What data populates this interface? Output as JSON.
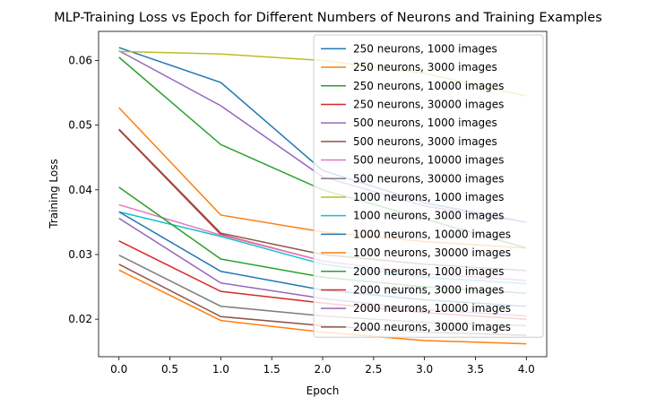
{
  "chart_data": {
    "type": "line",
    "title": "MLP-Training Loss vs Epoch for Different Numbers of Neurons and Training Examples",
    "xlabel": "Epoch",
    "ylabel": "Training Loss",
    "xlim": [
      -0.2,
      4.2
    ],
    "ylim": [
      0.0142,
      0.0645
    ],
    "xticks": [
      0.0,
      0.5,
      1.0,
      1.5,
      2.0,
      2.5,
      3.0,
      3.5,
      4.0
    ],
    "xtick_labels": [
      "0.0",
      "0.5",
      "1.0",
      "1.5",
      "2.0",
      "2.5",
      "3.0",
      "3.5",
      "4.0"
    ],
    "yticks": [
      0.02,
      0.03,
      0.04,
      0.05,
      0.06
    ],
    "ytick_labels": [
      "0.02",
      "0.03",
      "0.04",
      "0.05",
      "0.06"
    ],
    "grid": false,
    "legend_position": "upper right",
    "x": [
      0,
      1,
      2,
      3,
      4
    ],
    "series": [
      {
        "name": "250 neurons, 1000 images",
        "color": "#1f77b4",
        "values": [
          0.062,
          0.0566,
          0.043,
          0.038,
          0.035
        ]
      },
      {
        "name": "250 neurons, 3000 images",
        "color": "#ff7f0e",
        "values": [
          0.0527,
          0.0361,
          0.0335,
          0.032,
          0.031
        ]
      },
      {
        "name": "250 neurons, 10000 images",
        "color": "#2ca02c",
        "values": [
          0.0605,
          0.047,
          0.04,
          0.0355,
          0.031
        ]
      },
      {
        "name": "250 neurons, 30000 images",
        "color": "#d62728",
        "values": [
          0.0493,
          0.0331,
          0.029,
          0.027,
          0.026
        ]
      },
      {
        "name": "500 neurons, 1000 images",
        "color": "#9467bd",
        "values": [
          0.0615,
          0.053,
          0.042,
          0.0375,
          0.035
        ]
      },
      {
        "name": "500 neurons, 3000 images",
        "color": "#8c564b",
        "values": [
          0.0494,
          0.0333,
          0.03,
          0.0285,
          0.0275
        ]
      },
      {
        "name": "500 neurons, 10000 images",
        "color": "#e377c2",
        "values": [
          0.0377,
          0.033,
          0.029,
          0.027,
          0.026
        ]
      },
      {
        "name": "500 neurons, 30000 images",
        "color": "#7f7f7f",
        "values": [
          0.0299,
          0.022,
          0.0205,
          0.0195,
          0.019
        ]
      },
      {
        "name": "1000 neurons, 1000 images",
        "color": "#bcbd22",
        "values": [
          0.0614,
          0.061,
          0.06,
          0.058,
          0.0545
        ]
      },
      {
        "name": "1000 neurons, 3000 images",
        "color": "#17becf",
        "values": [
          0.0366,
          0.0328,
          0.0285,
          0.0265,
          0.0255
        ]
      },
      {
        "name": "1000 neurons, 10000 images",
        "color": "#1f77b4",
        "values": [
          0.0366,
          0.0274,
          0.0245,
          0.023,
          0.022
        ]
      },
      {
        "name": "1000 neurons, 30000 images",
        "color": "#ff7f0e",
        "values": [
          0.0276,
          0.0198,
          0.018,
          0.0167,
          0.0162
        ]
      },
      {
        "name": "2000 neurons, 1000 images",
        "color": "#2ca02c",
        "values": [
          0.0404,
          0.0293,
          0.0265,
          0.025,
          0.024
        ]
      },
      {
        "name": "2000 neurons, 3000 images",
        "color": "#d62728",
        "values": [
          0.0321,
          0.0243,
          0.0225,
          0.021,
          0.02
        ]
      },
      {
        "name": "2000 neurons, 10000 images",
        "color": "#9467bd",
        "values": [
          0.0356,
          0.0256,
          0.0232,
          0.0215,
          0.0205
        ]
      },
      {
        "name": "2000 neurons, 30000 images",
        "color": "#8c564b",
        "values": [
          0.0285,
          0.0204,
          0.019,
          0.018,
          0.0175
        ]
      }
    ]
  }
}
